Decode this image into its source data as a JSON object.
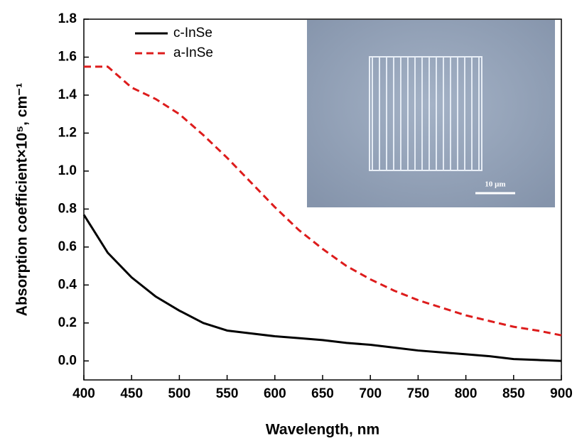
{
  "chart_data": {
    "type": "line",
    "x_label": "Wavelength, nm",
    "y_label": "Absorption coefficient×10⁵, cm⁻¹",
    "x": [
      400,
      425,
      450,
      475,
      500,
      525,
      550,
      575,
      600,
      625,
      650,
      675,
      700,
      725,
      750,
      775,
      800,
      825,
      850,
      875,
      900
    ],
    "series": [
      {
        "name": "c-InSe",
        "color": "#000000",
        "dash": false,
        "values": [
          0.77,
          0.57,
          0.44,
          0.34,
          0.265,
          0.2,
          0.16,
          0.145,
          0.13,
          0.12,
          0.11,
          0.095,
          0.085,
          0.07,
          0.055,
          0.045,
          0.035,
          0.025,
          0.01,
          0.005,
          0.0
        ]
      },
      {
        "name": "a-InSe",
        "color": "#dd1c1c",
        "dash": true,
        "values": [
          1.55,
          1.55,
          1.44,
          1.38,
          1.3,
          1.19,
          1.07,
          0.94,
          0.81,
          0.69,
          0.59,
          0.5,
          0.43,
          0.37,
          0.32,
          0.28,
          0.24,
          0.21,
          0.18,
          0.16,
          0.135
        ]
      }
    ],
    "xlim": [
      400,
      900
    ],
    "ylim": [
      -0.1,
      1.8
    ],
    "xticks": [
      400,
      450,
      500,
      550,
      600,
      650,
      700,
      750,
      800,
      850,
      900
    ],
    "yticks": [
      {
        "value": 0,
        "label": "0.0"
      },
      0.2,
      0.4,
      0.6,
      0.8,
      {
        "value": 1,
        "label": "1.0"
      },
      1.2,
      1.4,
      1.6,
      1.8
    ],
    "inset_scale_label": "10 μm"
  }
}
